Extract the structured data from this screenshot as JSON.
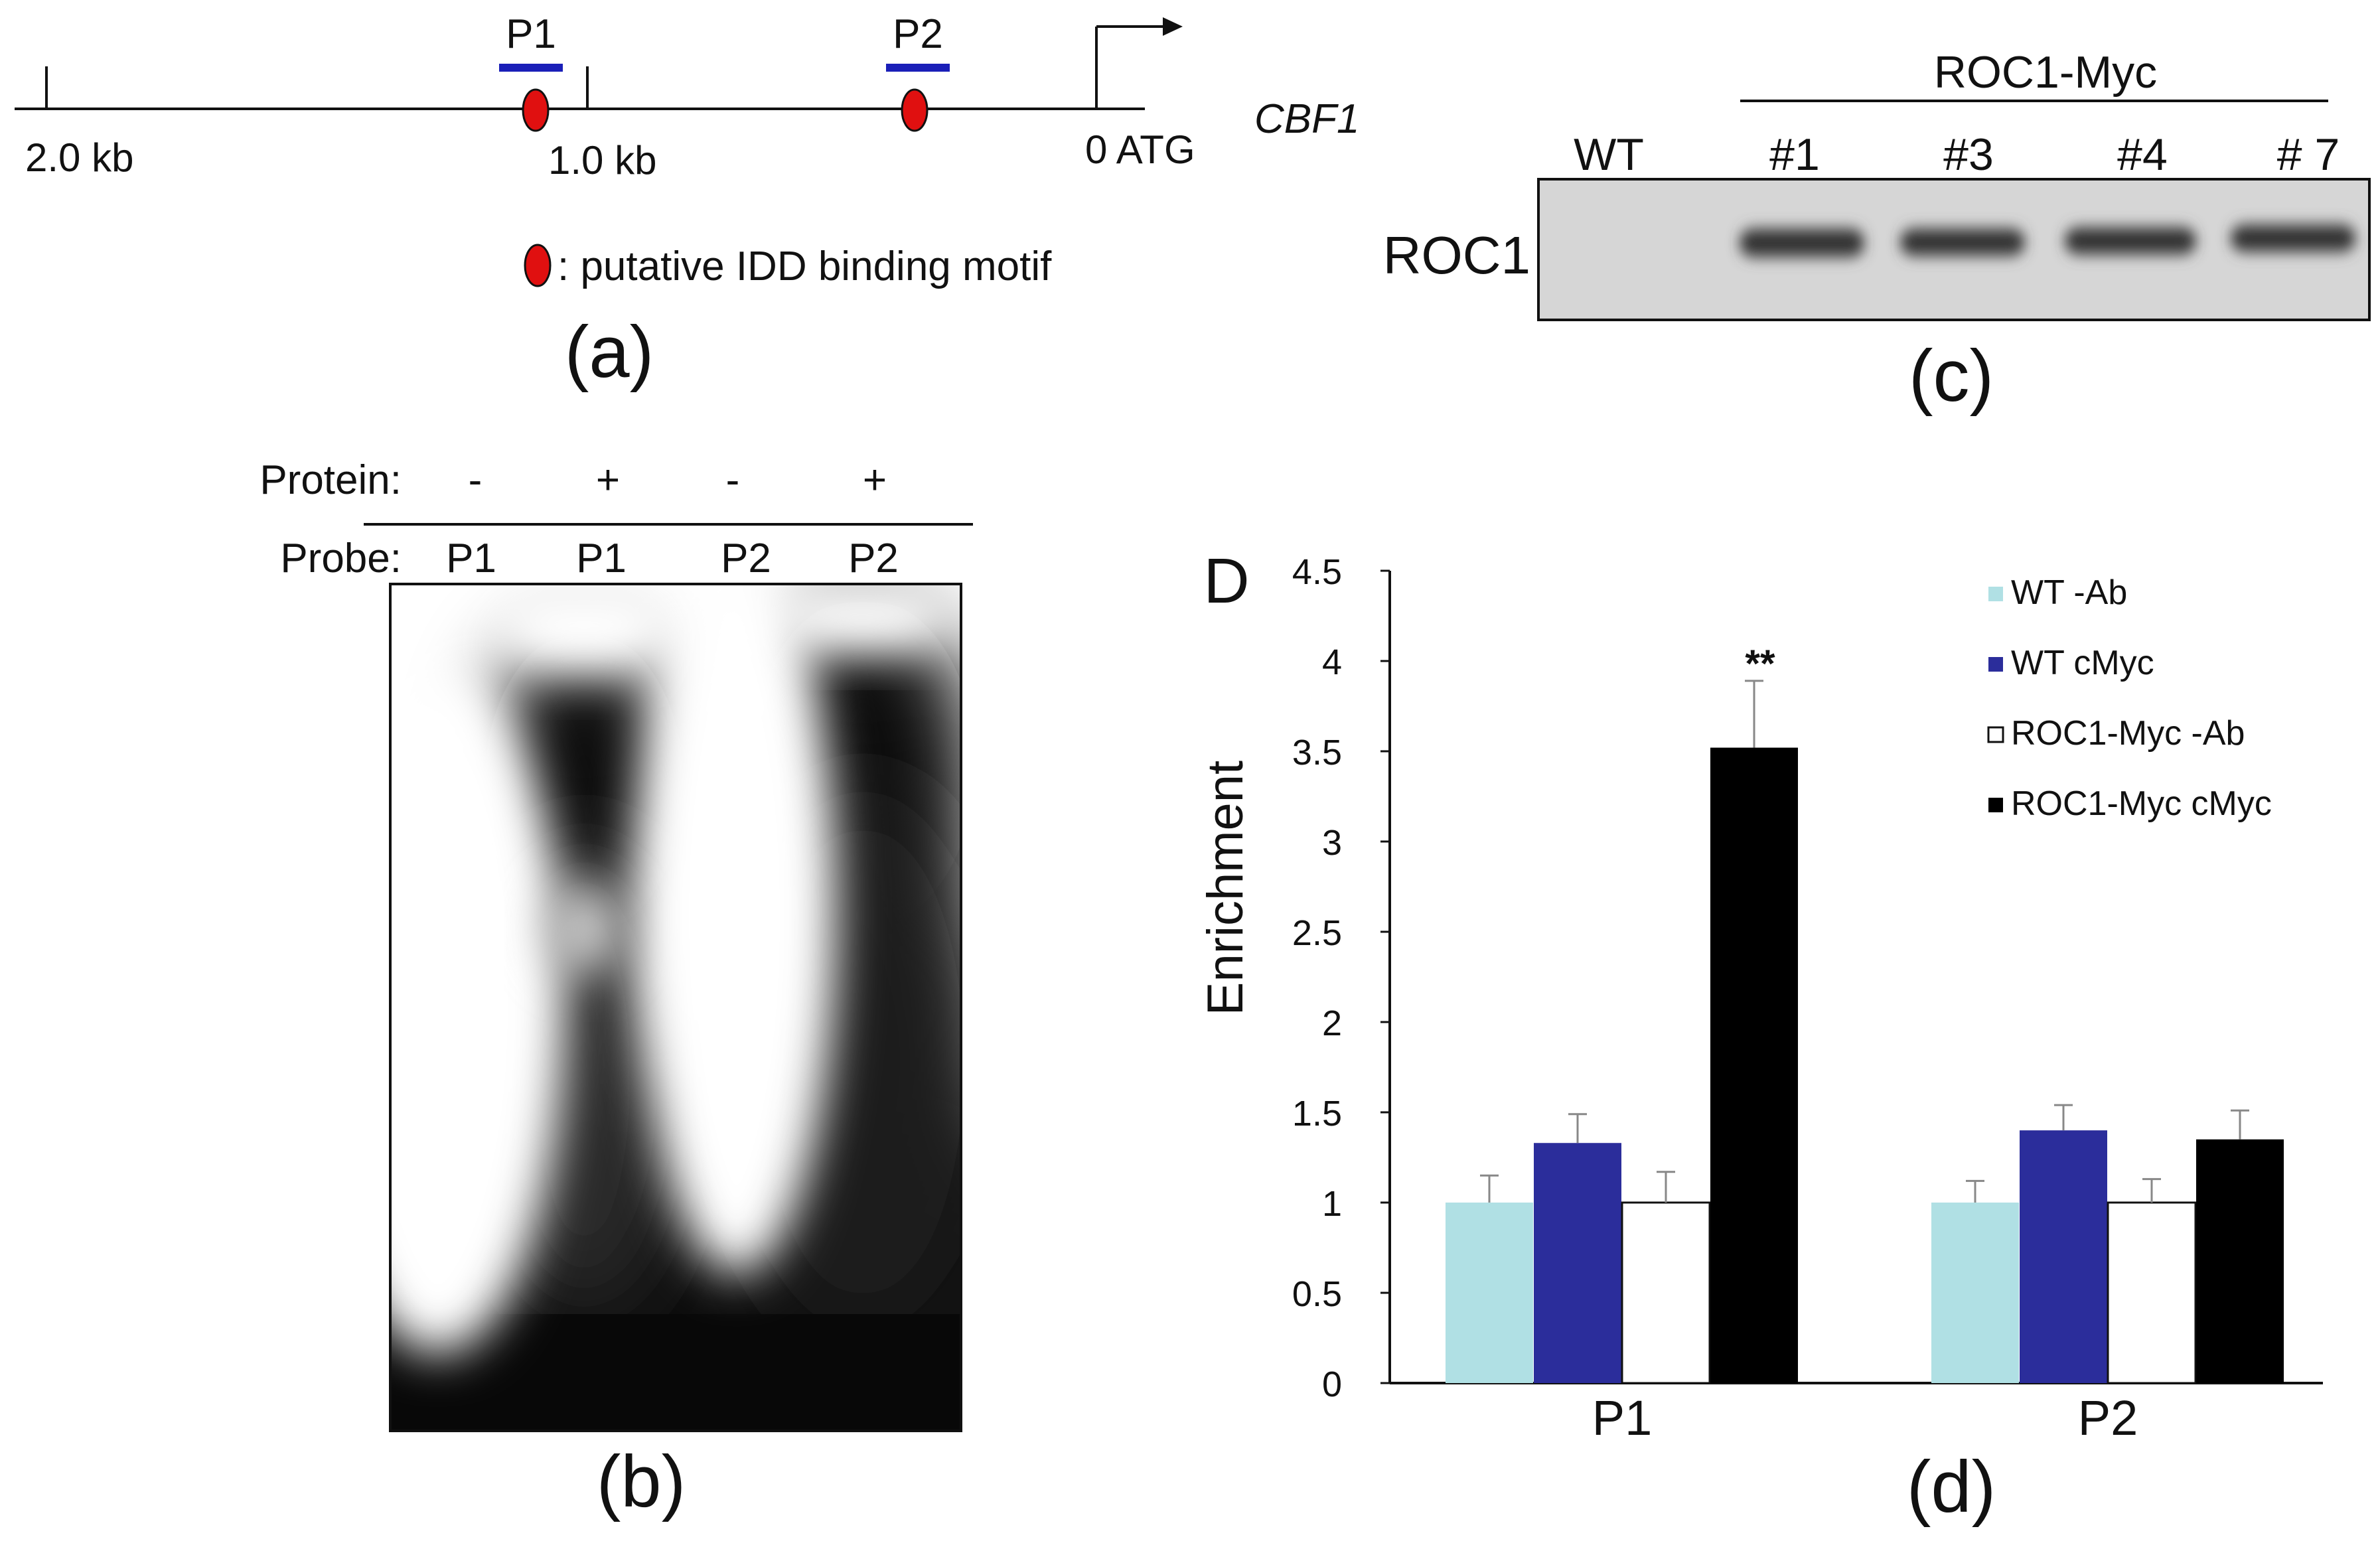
{
  "panel_a": {
    "caption": "(a)",
    "gene_label": "CBF1",
    "scale_labels": [
      "2.0  kb",
      "1.0  kb",
      "0  ATG"
    ],
    "probe_labels": [
      "P1",
      "P2"
    ],
    "legend_text": ": putative IDD binding motif",
    "colors": {
      "probe_bar": "#1a1fb8",
      "motif": "#e01010"
    }
  },
  "panel_b": {
    "caption": "(b)",
    "protein_label": "Protein:",
    "probe_label": "Probe:",
    "lanes": [
      {
        "protein": "-",
        "probe": "P1"
      },
      {
        "protein": "+",
        "probe": "P1"
      },
      {
        "protein": "-",
        "probe": "P2"
      },
      {
        "protein": "+",
        "probe": "P2"
      }
    ]
  },
  "panel_c": {
    "caption": "(c)",
    "group_label": "ROC1-Myc",
    "row_label": "ROC1",
    "lanes": [
      "WT",
      "#1",
      "#3",
      "#4",
      "# 7"
    ]
  },
  "panel_d": {
    "caption": "(d)",
    "letter": "D",
    "significance": "**",
    "colors": {
      "wt_ab": "#b0e0e4",
      "wt_cmyc": "#2b2d9b",
      "roc_ab": "#ffffff",
      "roc_cmyc": "#000000",
      "axis": "#111111"
    }
  },
  "chart_data": {
    "type": "bar",
    "title": "",
    "xlabel": "",
    "ylabel": "Enrichment",
    "ylim": [
      0,
      4.5
    ],
    "yticks": [
      "0",
      "0.5",
      "1",
      "1.5",
      "2",
      "2.5",
      "3",
      "3.5",
      "4",
      "4.5"
    ],
    "categories": [
      "P1",
      "P2"
    ],
    "series": [
      {
        "name": "WT -Ab",
        "values": [
          1.0,
          1.0
        ],
        "errors": [
          0.15,
          0.12
        ],
        "color": "#b0e0e4"
      },
      {
        "name": "WT cMyc",
        "values": [
          1.33,
          1.4
        ],
        "errors": [
          0.16,
          0.14
        ],
        "color": "#2b2d9b"
      },
      {
        "name": "ROC1-Myc -Ab",
        "values": [
          1.0,
          1.0
        ],
        "errors": [
          0.17,
          0.13
        ],
        "color": "#ffffff"
      },
      {
        "name": "ROC1-Myc cMyc",
        "values": [
          3.52,
          1.35
        ],
        "errors": [
          0.37,
          0.16
        ],
        "color": "#000000"
      }
    ],
    "legend_position": "top-right"
  }
}
